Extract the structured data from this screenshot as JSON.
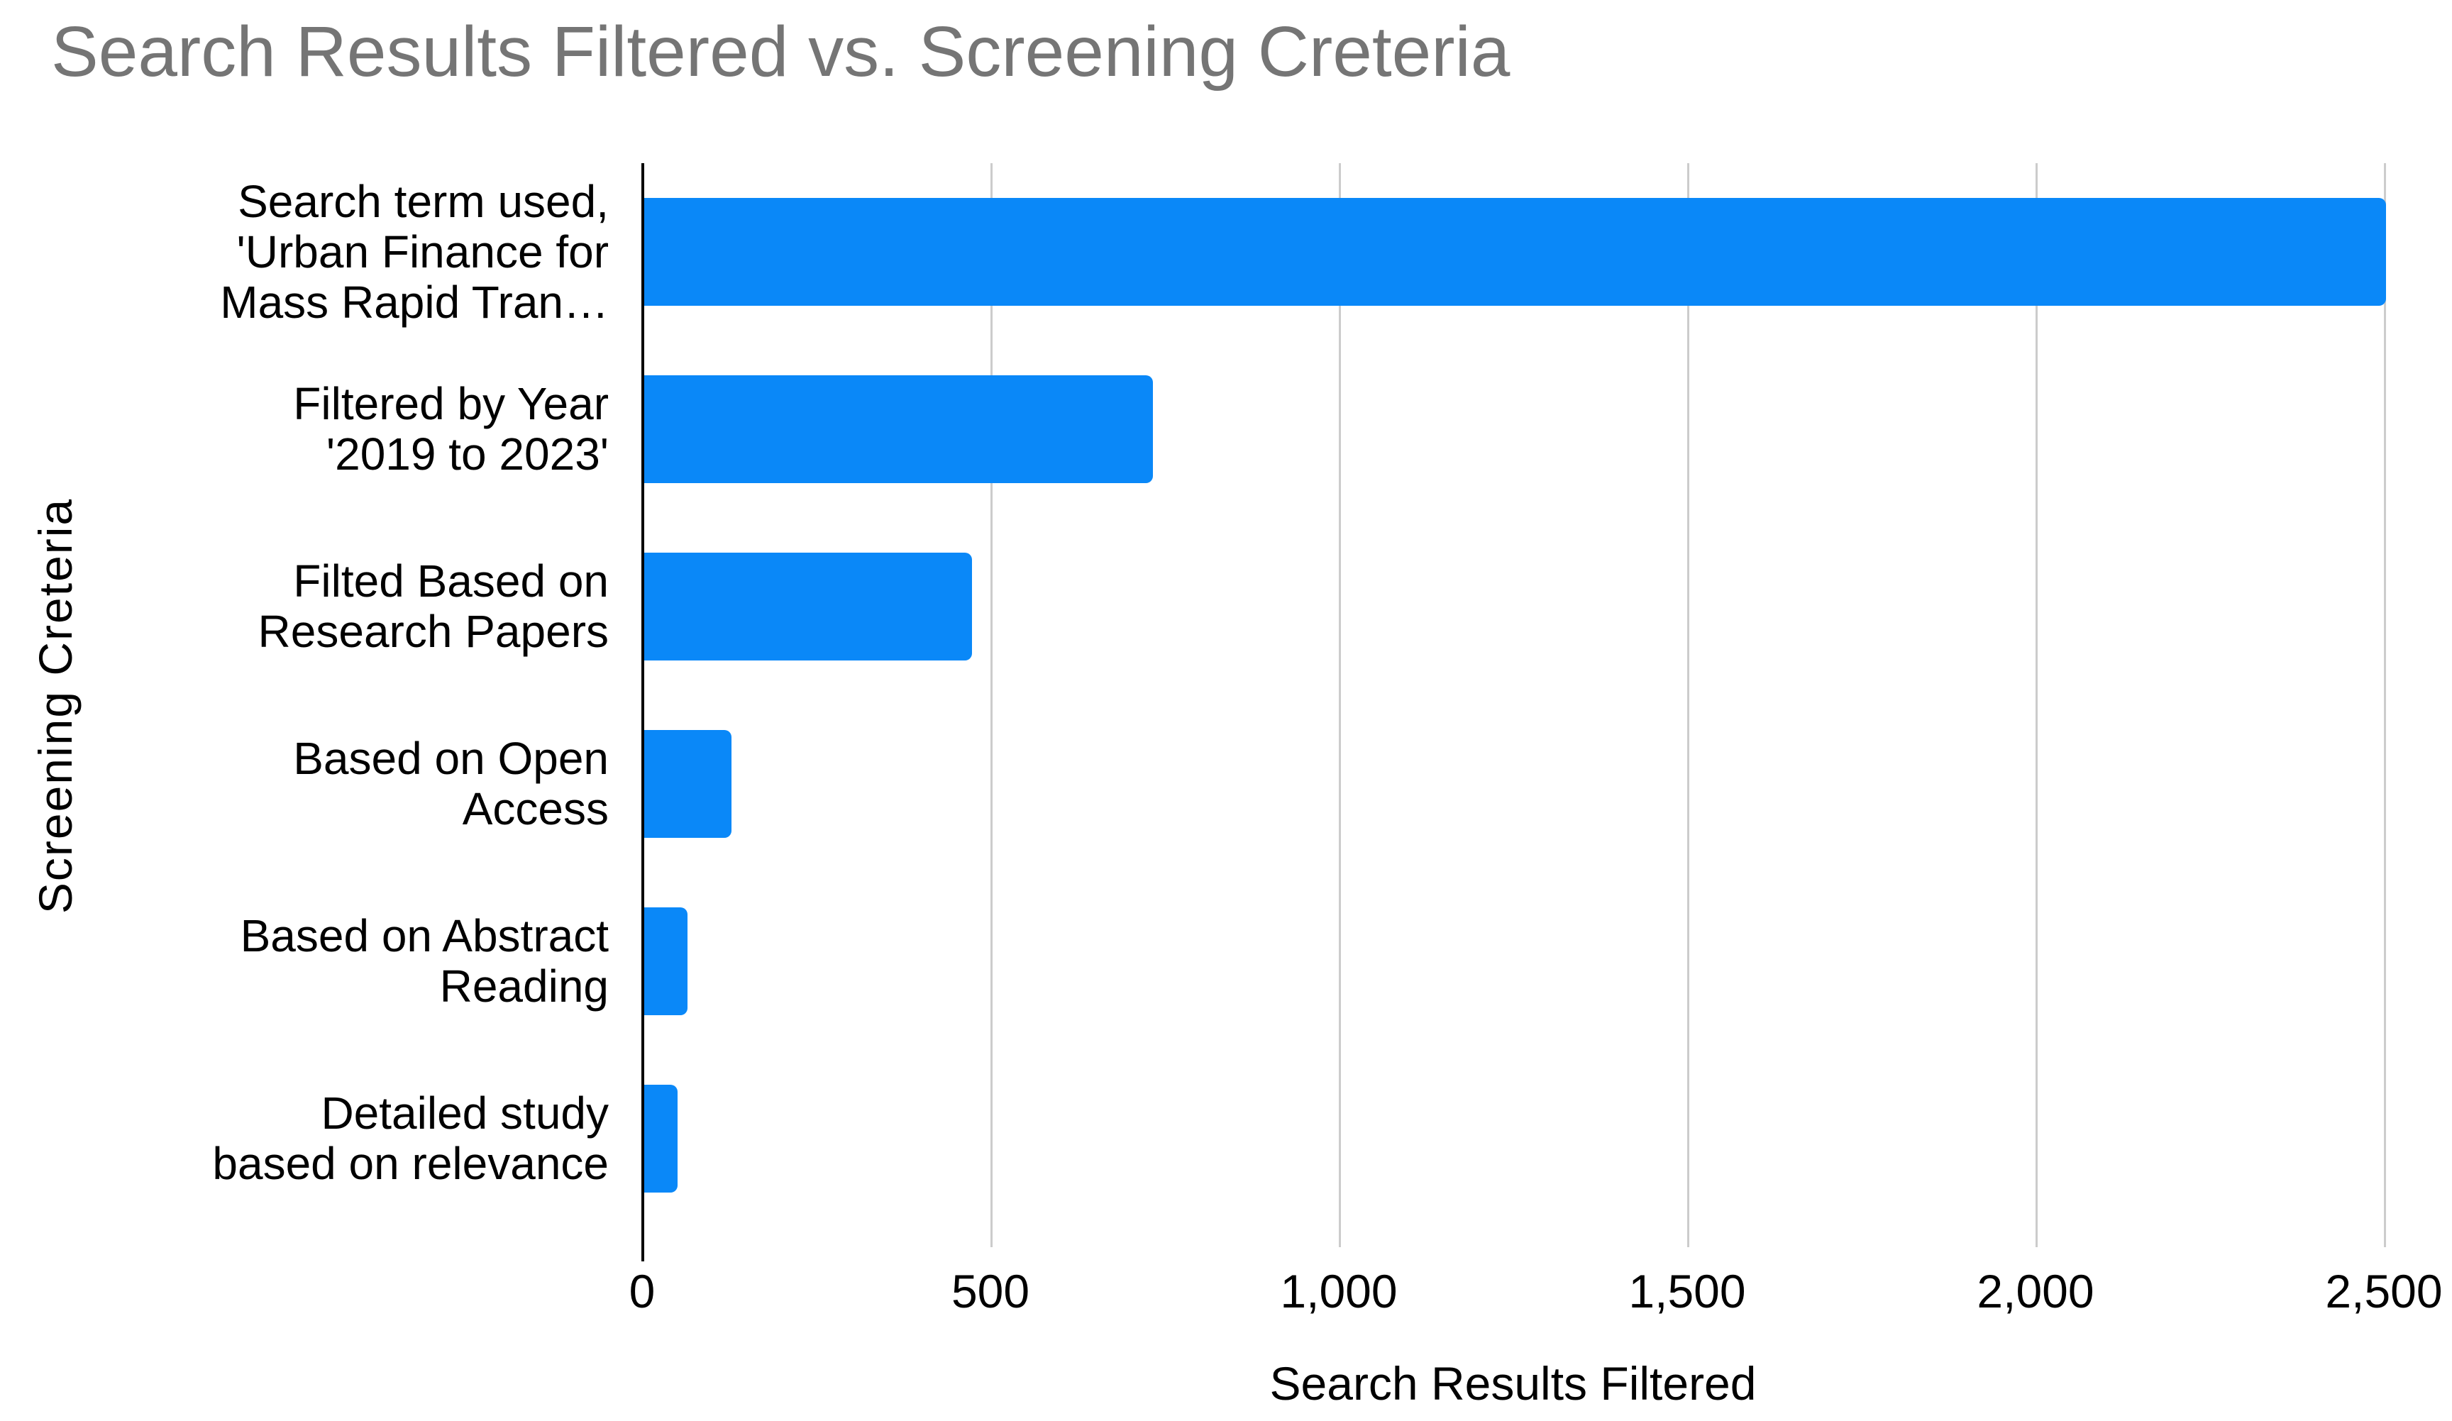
{
  "chart_data": {
    "type": "bar",
    "orientation": "horizontal",
    "title": "Search Results Filtered vs. Screening Creteria",
    "title_color": "#757575",
    "xlabel": "Search Results Filtered",
    "ylabel": "Screening Creteria",
    "categories": [
      "Search term used, 'Urban Finance for Mass Rapid Tran…",
      "Filtered by Year '2019 to 2023'",
      "Filted Based on Research Papers",
      "Based on Open Access",
      "Based on Abstract Reading",
      "Detailed study based on relevance"
    ],
    "category_lines": [
      [
        "Search term used,",
        "'Urban Finance for",
        "Mass Rapid Tran…"
      ],
      [
        "Filtered by Year",
        "'2019 to 2023'"
      ],
      [
        "Filted Based on",
        "Research Papers"
      ],
      [
        "Based on Open",
        "Access"
      ],
      [
        "Based on Abstract",
        "Reading"
      ],
      [
        "Detailed study",
        "based on relevance"
      ]
    ],
    "values": [
      2500,
      730,
      470,
      125,
      62,
      48
    ],
    "xlim": [
      0,
      2500
    ],
    "xticks": [
      0,
      500,
      1000,
      1500,
      2000,
      2500
    ],
    "xtick_labels": [
      "0",
      "500",
      "1,000",
      "1,500",
      "2,000",
      "2,500"
    ],
    "bar_color": "#0a88f8",
    "grid": true,
    "gridline_color": "#cccccc",
    "axis_color": "#000000",
    "legend": "none"
  }
}
